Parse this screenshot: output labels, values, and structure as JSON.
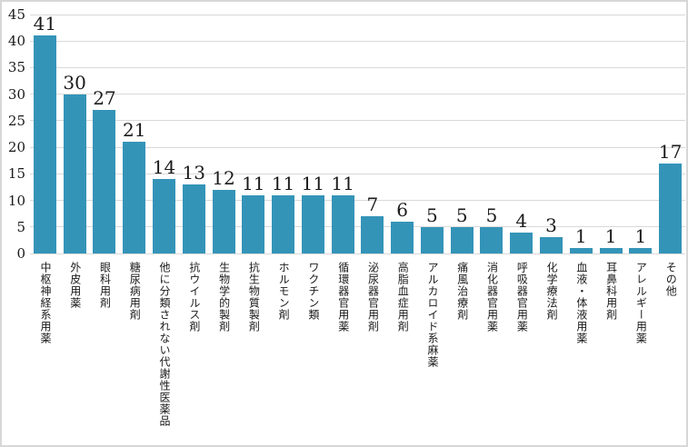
{
  "chart_data": {
    "type": "bar",
    "title": "",
    "xlabel": "",
    "ylabel": "",
    "categories": [
      "中枢神経系用薬",
      "外皮用薬",
      "眼科用剤",
      "糖尿病用剤",
      "他に分類されない代謝性医薬品",
      "抗ウイルス剤",
      "生物学的製剤",
      "抗生物質製剤",
      "ホルモン剤",
      "ワクチン類",
      "循環器官用薬",
      "泌尿器官用剤",
      "高脂血症用剤",
      "アルカロイド系麻薬",
      "痛風治療剤",
      "消化器官用薬",
      "呼吸器官用薬",
      "化学療法剤",
      "血液・体液用薬",
      "耳鼻科用剤",
      "アレルギー用薬",
      "その他"
    ],
    "values": [
      41,
      30,
      27,
      21,
      14,
      13,
      12,
      11,
      11,
      11,
      11,
      7,
      6,
      5,
      5,
      5,
      4,
      3,
      1,
      1,
      1,
      17
    ],
    "data_labels_shown": true,
    "ylim": [
      0,
      45
    ],
    "yticks": [
      0,
      5,
      10,
      15,
      20,
      25,
      30,
      35,
      40,
      45
    ],
    "grid": true,
    "legend": "none",
    "x_label_orientation": "vertical",
    "bar_color": "#3494b8",
    "gridline_color": "#d9d9d9",
    "text_color": "#1a1a1a",
    "frame_border_color": "#d7d7d7",
    "background_color": "#ffffff"
  }
}
